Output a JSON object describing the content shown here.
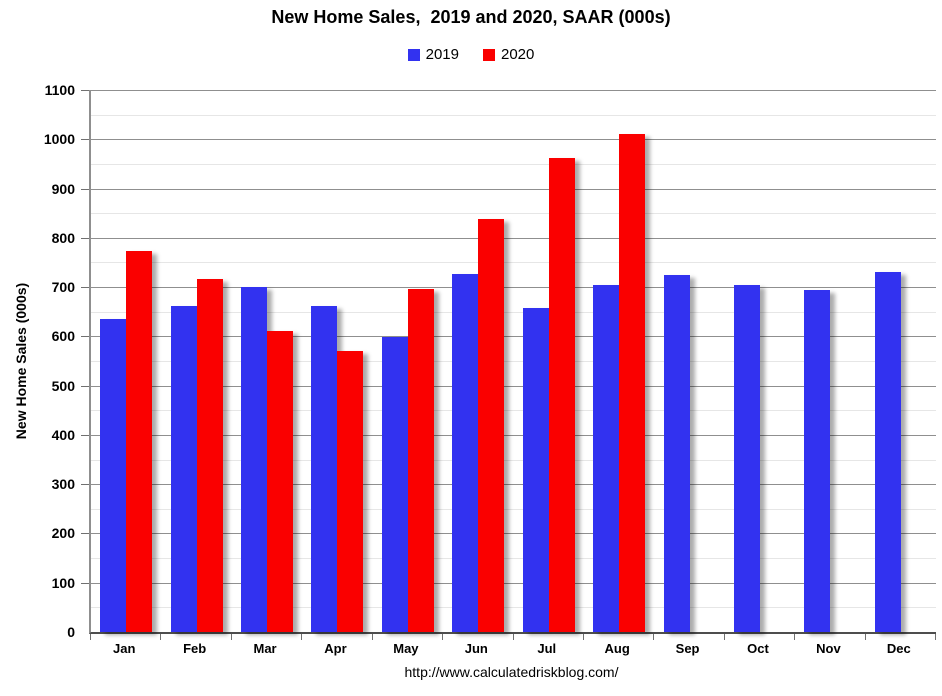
{
  "chart_data": {
    "type": "bar",
    "title": "New Home Sales,  2019 and 2020, SAAR (000s)",
    "ylabel": "New Home Sales (000s)",
    "xlabel": "",
    "footer_url": "http://www.calculatedriskblog.com/",
    "categories": [
      "Jan",
      "Feb",
      "Mar",
      "Apr",
      "May",
      "Jun",
      "Jul",
      "Aug",
      "Sep",
      "Oct",
      "Nov",
      "Dec"
    ],
    "series": [
      {
        "name": "2019",
        "color": "#3232F0",
        "values": [
          636,
          662,
          700,
          662,
          598,
          726,
          658,
          705,
          725,
          705,
          695,
          730
        ]
      },
      {
        "name": "2020",
        "color": "#FA0000",
        "values": [
          773,
          716,
          611,
          570,
          697,
          839,
          962,
          1010,
          null,
          null,
          null,
          null
        ]
      }
    ],
    "ylim": [
      0,
      1100
    ],
    "y_tick_step": 100,
    "y_minor_step": 50,
    "grid": true,
    "legend_position": "top",
    "colors": {
      "bar_2019": "#3232F0",
      "bar_2020": "#FA0000",
      "major_grid": "#8F8F8F",
      "minor_grid": "#E6E6E6",
      "axis": "#4D4D4D",
      "text": "#000000",
      "background": "#FFFFFF"
    }
  }
}
